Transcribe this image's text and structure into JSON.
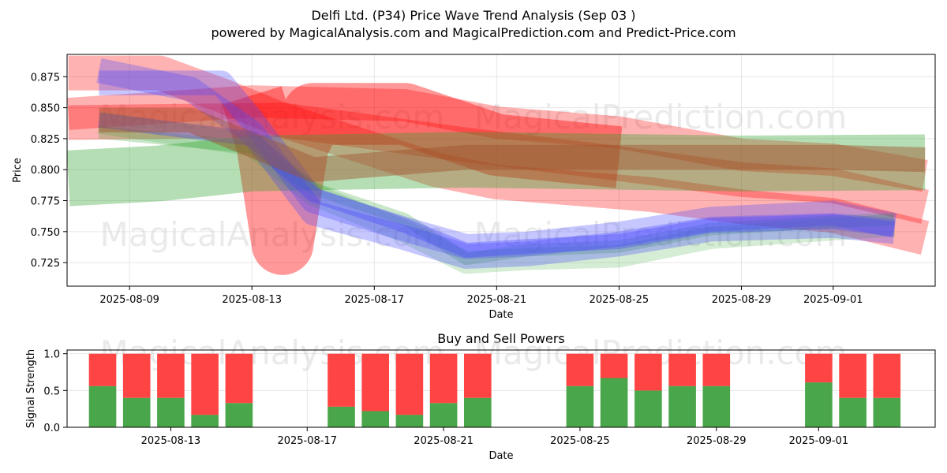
{
  "title": "Delfi Ltd. (P34) Price Wave Trend Analysis (Sep 03 )",
  "subtitle": "powered by MagicalAnalysis.com and MagicalPrediction.com and Predict-Price.com",
  "watermarks": {
    "top": [
      "MagicalAnalysis.com",
      "MagicalPrediction.com",
      "MagicalAnalysis.com",
      "MagicalPrediction.com"
    ],
    "bottom": [
      "MagicalAnalysis.com",
      "MagicalPrediction.com"
    ]
  },
  "colors": {
    "green": "#2ca02c",
    "red": "#ff0000",
    "blue": "#4444ff",
    "bar_green": "#4aa64a",
    "bar_red": "#ff4444"
  },
  "chart_data": [
    {
      "type": "line",
      "title": "",
      "xlabel": "Date",
      "ylabel": "Price",
      "x_domain": [
        "2025-08-06T23:00",
        "2025-09-04T08:00"
      ],
      "ylim": [
        0.706,
        0.893
      ],
      "x_ticks": [
        "2025-08-09",
        "2025-08-13",
        "2025-08-17",
        "2025-08-21",
        "2025-08-25",
        "2025-08-29",
        "2025-09-01"
      ],
      "y_ticks": [
        0.725,
        0.75,
        0.775,
        0.8,
        0.825,
        0.85,
        0.875
      ],
      "grid": true,
      "series": [
        {
          "name": "red-band-a",
          "color": "red",
          "width": 0.028,
          "opacity": 0.3,
          "points": [
            [
              "2025-08-07",
              0.878
            ],
            [
              "2025-08-10",
              0.878
            ],
            [
              "2025-08-12",
              0.86
            ],
            [
              "2025-08-14",
              0.84
            ],
            [
              "2025-08-20",
              0.82
            ],
            [
              "2025-08-24",
              0.808
            ],
            [
              "2025-08-29",
              0.792
            ],
            [
              "2025-09-01",
              0.787
            ],
            [
              "2025-09-04",
              0.77
            ]
          ]
        },
        {
          "name": "red-band-b",
          "color": "red",
          "width": 0.026,
          "opacity": 0.3,
          "points": [
            [
              "2025-08-07",
              0.845
            ],
            [
              "2025-08-13",
              0.855
            ],
            [
              "2025-08-18",
              0.852
            ],
            [
              "2025-08-21",
              0.838
            ],
            [
              "2025-08-25",
              0.83
            ],
            [
              "2025-08-29",
              0.812
            ],
            [
              "2025-09-01",
              0.808
            ],
            [
              "2025-09-04",
              0.795
            ]
          ]
        },
        {
          "name": "red-band-c",
          "color": "red",
          "width": 0.028,
          "opacity": 0.3,
          "points": [
            [
              "2025-08-07",
              0.838
            ],
            [
              "2025-08-14",
              0.84
            ],
            [
              "2025-08-19",
              0.8
            ],
            [
              "2025-08-21",
              0.79
            ],
            [
              "2025-08-26",
              0.78
            ],
            [
              "2025-08-29",
              0.77
            ],
            [
              "2025-09-01",
              0.763
            ],
            [
              "2025-09-04",
              0.745
            ]
          ]
        },
        {
          "name": "red-hump",
          "color": "red",
          "width": 0.05,
          "opacity": 0.4,
          "points": [
            [
              "2025-08-13",
              0.86
            ],
            [
              "2025-08-13T12:00",
              0.82
            ],
            [
              "2025-08-14",
              0.74
            ],
            [
              "2025-08-14T12:00",
              0.82
            ],
            [
              "2025-08-15",
              0.845
            ],
            [
              "2025-08-18",
              0.845
            ],
            [
              "2025-08-21",
              0.82
            ],
            [
              "2025-08-25",
              0.81
            ]
          ]
        },
        {
          "name": "green-band-a",
          "color": "green",
          "width": 0.045,
          "opacity": 0.35,
          "points": [
            [
              "2025-08-07",
              0.793
            ],
            [
              "2025-08-10",
              0.797
            ],
            [
              "2025-08-13",
              0.805
            ],
            [
              "2025-08-20",
              0.808
            ],
            [
              "2025-08-29",
              0.805
            ],
            [
              "2025-09-04",
              0.806
            ]
          ]
        },
        {
          "name": "green-band-b",
          "color": "green",
          "width": 0.01,
          "opacity": 0.25,
          "points": [
            [
              "2025-08-08",
              0.83
            ],
            [
              "2025-08-13",
              0.818
            ],
            [
              "2025-08-15",
              0.785
            ],
            [
              "2025-08-18",
              0.76
            ],
            [
              "2025-08-20",
              0.728
            ],
            [
              "2025-08-22",
              0.735
            ],
            [
              "2025-08-25",
              0.738
            ],
            [
              "2025-08-28",
              0.752
            ],
            [
              "2025-09-01",
              0.758
            ],
            [
              "2025-09-03",
              0.76
            ]
          ]
        },
        {
          "name": "green-band-c",
          "color": "green",
          "width": 0.018,
          "opacity": 0.2,
          "points": [
            [
              "2025-08-08",
              0.838
            ],
            [
              "2025-08-13",
              0.82
            ],
            [
              "2025-08-15",
              0.78
            ],
            [
              "2025-08-18",
              0.75
            ],
            [
              "2025-08-20",
              0.725
            ],
            [
              "2025-08-22",
              0.728
            ],
            [
              "2025-08-25",
              0.73
            ],
            [
              "2025-08-28",
              0.745
            ],
            [
              "2025-09-01",
              0.752
            ],
            [
              "2025-09-03",
              0.755
            ]
          ]
        },
        {
          "name": "blue-band-a",
          "color": "blue",
          "width": 0.02,
          "opacity": 0.3,
          "points": [
            [
              "2025-08-08",
              0.88
            ],
            [
              "2025-08-11",
              0.865
            ],
            [
              "2025-08-13",
              0.83
            ],
            [
              "2025-08-15",
              0.765
            ],
            [
              "2025-08-18",
              0.745
            ],
            [
              "2025-08-20",
              0.73
            ],
            [
              "2025-08-22",
              0.732
            ],
            [
              "2025-08-25",
              0.74
            ],
            [
              "2025-08-28",
              0.752
            ],
            [
              "2025-09-01",
              0.755
            ],
            [
              "2025-09-03",
              0.75
            ]
          ]
        },
        {
          "name": "blue-band-b",
          "color": "blue",
          "width": 0.02,
          "opacity": 0.3,
          "points": [
            [
              "2025-08-08",
              0.87
            ],
            [
              "2025-08-12",
              0.87
            ],
            [
              "2025-08-13",
              0.84
            ],
            [
              "2025-08-15",
              0.775
            ],
            [
              "2025-08-18",
              0.752
            ],
            [
              "2025-08-20",
              0.738
            ],
            [
              "2025-08-22",
              0.74
            ],
            [
              "2025-08-25",
              0.748
            ],
            [
              "2025-08-28",
              0.76
            ],
            [
              "2025-09-01",
              0.765
            ],
            [
              "2025-09-03",
              0.755
            ]
          ]
        },
        {
          "name": "blue-band-c",
          "color": "blue",
          "width": 0.012,
          "opacity": 0.35,
          "points": [
            [
              "2025-08-08",
              0.84
            ],
            [
              "2025-08-13",
              0.825
            ],
            [
              "2025-08-15",
              0.78
            ],
            [
              "2025-08-18",
              0.755
            ],
            [
              "2025-08-20",
              0.735
            ],
            [
              "2025-08-22",
              0.738
            ],
            [
              "2025-08-25",
              0.742
            ],
            [
              "2025-08-28",
              0.755
            ],
            [
              "2025-09-01",
              0.758
            ],
            [
              "2025-09-03",
              0.752
            ]
          ]
        },
        {
          "name": "brown-band",
          "color": "brown",
          "width": 0.02,
          "opacity": 0.45,
          "points": [
            [
              "2025-08-08",
              0.84
            ],
            [
              "2025-08-11",
              0.84
            ],
            [
              "2025-08-13",
              0.82
            ],
            [
              "2025-08-15",
              0.8
            ],
            [
              "2025-08-20",
              0.81
            ],
            [
              "2025-08-25",
              0.81
            ],
            [
              "2025-09-01",
              0.81
            ],
            [
              "2025-09-04",
              0.808
            ]
          ]
        }
      ]
    },
    {
      "type": "bar",
      "title": "Buy and Sell Powers",
      "xlabel": "Date",
      "ylabel": "Signal Strength",
      "x_domain": [
        "2025-08-09T23:00",
        "2025-09-04T10:00"
      ],
      "ylim": [
        0,
        1.05
      ],
      "x_ticks": [
        "2025-08-13",
        "2025-08-17",
        "2025-08-21",
        "2025-08-25",
        "2025-08-29",
        "2025-09-01"
      ],
      "y_ticks": [
        0.0,
        0.5,
        1.0
      ],
      "grid": true,
      "categories": [
        "2025-08-11",
        "2025-08-12",
        "2025-08-13",
        "2025-08-14",
        "2025-08-15",
        "2025-08-18",
        "2025-08-19",
        "2025-08-20",
        "2025-08-21",
        "2025-08-22",
        "2025-08-25",
        "2025-08-26",
        "2025-08-27",
        "2025-08-28",
        "2025-08-29",
        "2025-09-01",
        "2025-09-02",
        "2025-09-03"
      ],
      "series": [
        {
          "name": "Buy",
          "color": "bar_green",
          "values": [
            0.56,
            0.4,
            0.4,
            0.17,
            0.33,
            0.28,
            0.22,
            0.17,
            0.33,
            0.4,
            0.56,
            0.67,
            0.5,
            0.56,
            0.56,
            0.61,
            0.4,
            0.4
          ]
        },
        {
          "name": "Sell",
          "color": "bar_red",
          "values": [
            0.44,
            0.6,
            0.6,
            0.83,
            0.67,
            0.72,
            0.78,
            0.83,
            0.67,
            0.6,
            0.44,
            0.33,
            0.5,
            0.44,
            0.44,
            0.39,
            0.6,
            0.6
          ]
        }
      ]
    }
  ]
}
